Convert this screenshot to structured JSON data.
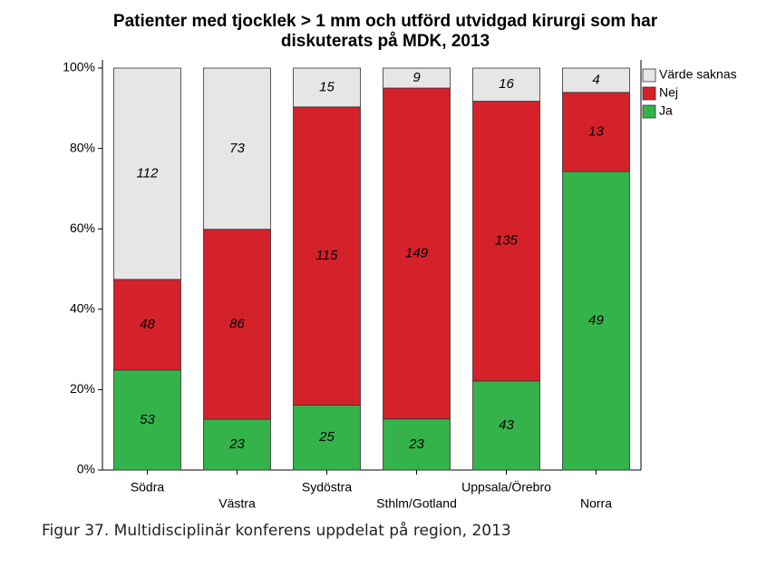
{
  "chart_data": {
    "type": "bar",
    "stacked": "percent",
    "title": [
      "Patienter med tjocklek > 1 mm och utförd utvidgad kirurgi som har",
      "diskuterats på MDK, 2013"
    ],
    "caption": "Figur 37. Multidisciplinär konferens uppdelat på region, 2013",
    "categories": [
      "Södra",
      "Västra",
      "Sydöstra",
      "Sthlm/Gotland",
      "Uppsala/Örebro",
      "Norra"
    ],
    "series": [
      {
        "name": "Ja",
        "color": "#34b34a",
        "values": [
          53,
          23,
          25,
          23,
          43,
          49
        ]
      },
      {
        "name": "Nej",
        "color": "#d4212a",
        "values": [
          48,
          86,
          115,
          149,
          135,
          13
        ]
      },
      {
        "name": "Värde saknas",
        "color": "#e6e6e6",
        "values": [
          112,
          73,
          15,
          9,
          16,
          4
        ]
      }
    ],
    "ylim": [
      0,
      100
    ],
    "yticks": [
      {
        "value": 0,
        "label": "0%"
      },
      {
        "value": 20,
        "label": "20%"
      },
      {
        "value": 40,
        "label": "40%"
      },
      {
        "value": 60,
        "label": "60%"
      },
      {
        "value": 80,
        "label": "80%"
      },
      {
        "value": 100,
        "label": "100%"
      }
    ],
    "legend": "upper right"
  }
}
